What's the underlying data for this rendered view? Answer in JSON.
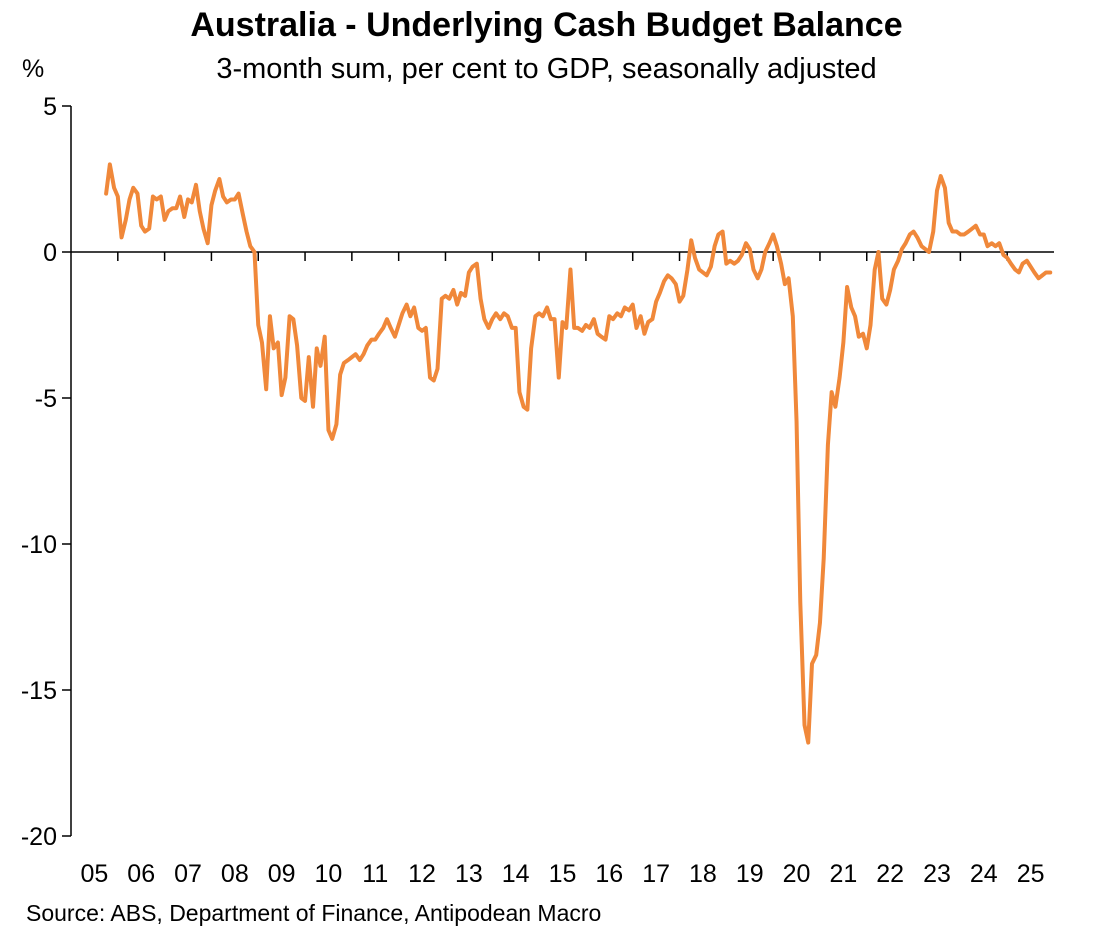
{
  "chart_data": {
    "type": "line",
    "title": "Australia - Underlying Cash Budget Balance",
    "subtitle": "3-month sum, per cent to GDP, seasonally adjusted",
    "ylabel": "%",
    "source": "Source: ABS, Department of Finance, Antipodean Macro",
    "ylim": [
      -20,
      5
    ],
    "yticks": [
      5,
      0,
      -5,
      -10,
      -15,
      -20
    ],
    "xlim": [
      2005.0,
      2026.0
    ],
    "xtick_labels": [
      "05",
      "06",
      "07",
      "08",
      "09",
      "10",
      "11",
      "12",
      "13",
      "14",
      "15",
      "16",
      "17",
      "18",
      "19",
      "20",
      "21",
      "22",
      "23",
      "24",
      "25"
    ],
    "grid": false,
    "line_color": "#F0883A",
    "series": [
      {
        "x": [
          2005.75,
          2005.83,
          2005.92,
          2006.0,
          2006.08,
          2006.17,
          2006.25,
          2006.33,
          2006.42,
          2006.5,
          2006.58,
          2006.67,
          2006.75,
          2006.83,
          2006.92,
          2007.0,
          2007.08,
          2007.17,
          2007.25,
          2007.33,
          2007.42,
          2007.5,
          2007.58,
          2007.67,
          2007.75,
          2007.83,
          2007.92,
          2008.0,
          2008.08,
          2008.17,
          2008.25,
          2008.33,
          2008.42,
          2008.5,
          2008.58,
          2008.67,
          2008.75,
          2008.83,
          2008.92,
          2009.0,
          2009.08,
          2009.17,
          2009.25,
          2009.33,
          2009.42,
          2009.5,
          2009.58,
          2009.67,
          2009.75,
          2009.83,
          2009.92,
          2010.0,
          2010.08,
          2010.17,
          2010.25,
          2010.33,
          2010.42,
          2010.5,
          2010.58,
          2010.67,
          2010.75,
          2010.83,
          2010.92,
          2011.0,
          2011.08,
          2011.17,
          2011.25,
          2011.33,
          2011.42,
          2011.5,
          2011.58,
          2011.67,
          2011.75,
          2011.83,
          2011.92,
          2012.0,
          2012.08,
          2012.17,
          2012.25,
          2012.33,
          2012.42,
          2012.5,
          2012.58,
          2012.67,
          2012.75,
          2012.83,
          2012.92,
          2013.0,
          2013.08,
          2013.17,
          2013.25,
          2013.33,
          2013.42,
          2013.5,
          2013.58,
          2013.67,
          2013.75,
          2013.83,
          2013.92,
          2014.0,
          2014.08,
          2014.17,
          2014.25,
          2014.33,
          2014.42,
          2014.5,
          2014.58,
          2014.67,
          2014.75,
          2014.83,
          2014.92,
          2015.0,
          2015.08,
          2015.17,
          2015.25,
          2015.33,
          2015.42,
          2015.5,
          2015.58,
          2015.67,
          2015.75,
          2015.83,
          2015.92,
          2016.0,
          2016.08,
          2016.17,
          2016.25,
          2016.33,
          2016.42,
          2016.5,
          2016.58,
          2016.67,
          2016.75,
          2016.83,
          2016.92,
          2017.0,
          2017.08,
          2017.17,
          2017.25,
          2017.33,
          2017.42,
          2017.5,
          2017.58,
          2017.67,
          2017.75,
          2017.83,
          2017.92,
          2018.0,
          2018.08,
          2018.17,
          2018.25,
          2018.33,
          2018.42,
          2018.5,
          2018.58,
          2018.67,
          2018.75,
          2018.83,
          2018.92,
          2019.0,
          2019.08,
          2019.17,
          2019.25,
          2019.33,
          2019.42,
          2019.5,
          2019.58,
          2019.67,
          2019.75,
          2019.83,
          2019.92,
          2020.0,
          2020.08,
          2020.17,
          2020.25,
          2020.33,
          2020.42,
          2020.5,
          2020.58,
          2020.67,
          2020.75,
          2020.83,
          2020.92,
          2021.0,
          2021.08,
          2021.17,
          2021.25,
          2021.33,
          2021.42,
          2021.5,
          2021.58,
          2021.67,
          2021.75,
          2021.83,
          2021.92,
          2022.0,
          2022.08,
          2022.17,
          2022.25,
          2022.33,
          2022.42,
          2022.5,
          2022.58,
          2022.67,
          2022.75,
          2022.83,
          2022.92,
          2023.0,
          2023.08,
          2023.17,
          2023.25,
          2023.33,
          2023.42,
          2023.5,
          2023.58,
          2023.67,
          2023.75,
          2023.83,
          2023.92,
          2024.0,
          2024.08,
          2024.17,
          2024.25,
          2024.33,
          2024.42,
          2024.5,
          2024.58,
          2024.67,
          2024.75,
          2024.83,
          2024.92,
          2025.0,
          2025.08,
          2025.17,
          2025.25,
          2025.33,
          2025.42,
          2025.5,
          2025.58,
          2025.67,
          2025.75,
          2025.83,
          2025.92
        ],
        "values": [
          2.0,
          3.0,
          2.2,
          1.9,
          0.5,
          1.1,
          1.8,
          2.2,
          2.0,
          0.9,
          0.7,
          0.8,
          1.9,
          1.8,
          1.9,
          1.1,
          1.4,
          1.5,
          1.5,
          1.9,
          1.2,
          1.8,
          1.7,
          2.3,
          1.4,
          0.8,
          0.3,
          1.6,
          2.1,
          2.5,
          1.9,
          1.7,
          1.8,
          1.8,
          2.0,
          1.3,
          0.7,
          0.2,
          0.0,
          -2.5,
          -3.1,
          -4.7,
          -2.2,
          -3.3,
          -3.1,
          -4.9,
          -4.3,
          -2.2,
          -2.3,
          -3.2,
          -5.0,
          -5.1,
          -3.6,
          -5.3,
          -3.3,
          -3.9,
          -2.9,
          -6.1,
          -6.4,
          -5.9,
          -4.2,
          -3.8,
          -3.7,
          -3.6,
          -3.5,
          -3.7,
          -3.5,
          -3.2,
          -3.0,
          -3.0,
          -2.8,
          -2.6,
          -2.3,
          -2.6,
          -2.9,
          -2.5,
          -2.1,
          -1.8,
          -2.2,
          -1.9,
          -2.6,
          -2.7,
          -2.6,
          -4.3,
          -4.4,
          -4.0,
          -1.6,
          -1.5,
          -1.6,
          -1.3,
          -1.8,
          -1.4,
          -1.5,
          -0.7,
          -0.5,
          -0.4,
          -1.6,
          -2.3,
          -2.6,
          -2.3,
          -2.1,
          -2.3,
          -2.1,
          -2.2,
          -2.6,
          -2.6,
          -4.8,
          -5.3,
          -5.4,
          -3.3,
          -2.2,
          -2.1,
          -2.2,
          -1.9,
          -2.3,
          -2.3,
          -4.3,
          -2.4,
          -2.6,
          -0.6,
          -2.6,
          -2.6,
          -2.7,
          -2.5,
          -2.6,
          -2.3,
          -2.8,
          -2.9,
          -3.0,
          -2.2,
          -2.3,
          -2.1,
          -2.2,
          -1.9,
          -2.0,
          -1.8,
          -2.6,
          -2.2,
          -2.8,
          -2.4,
          -2.3,
          -1.7,
          -1.4,
          -1.0,
          -0.8,
          -0.9,
          -1.1,
          -1.7,
          -1.5,
          -0.6,
          0.4,
          -0.2,
          -0.6,
          -0.7,
          -0.8,
          -0.5,
          0.2,
          0.6,
          0.7,
          -0.4,
          -0.3,
          -0.4,
          -0.3,
          -0.1,
          0.3,
          0.1,
          -0.6,
          -0.9,
          -0.6,
          0.0,
          0.3,
          0.6,
          0.2,
          -0.4,
          -1.1,
          -0.9,
          -2.2,
          -5.8,
          -12.0,
          -16.2,
          -16.8,
          -14.1,
          -13.8,
          -12.7,
          -10.5,
          -6.6,
          -4.8,
          -5.3,
          -4.3,
          -3.1,
          -1.2,
          -1.9,
          -2.2,
          -2.9,
          -2.8,
          -3.3,
          -2.5,
          -0.6,
          0.0,
          -1.6,
          -1.8,
          -1.3,
          -0.6,
          -0.3,
          0.1,
          0.3,
          0.6,
          0.7,
          0.5,
          0.2,
          0.1,
          0.0,
          0.7,
          2.1,
          2.6,
          2.2,
          1.0,
          0.7,
          0.7,
          0.6,
          0.6,
          0.7,
          0.8,
          0.9,
          0.6,
          0.6,
          0.2,
          0.3,
          0.2,
          0.3,
          -0.1,
          -0.2,
          -0.4,
          -0.6,
          -0.7,
          -0.4,
          -0.3,
          -0.5,
          -0.7,
          -0.9,
          -0.8,
          -0.7,
          -0.7
        ]
      }
    ]
  }
}
